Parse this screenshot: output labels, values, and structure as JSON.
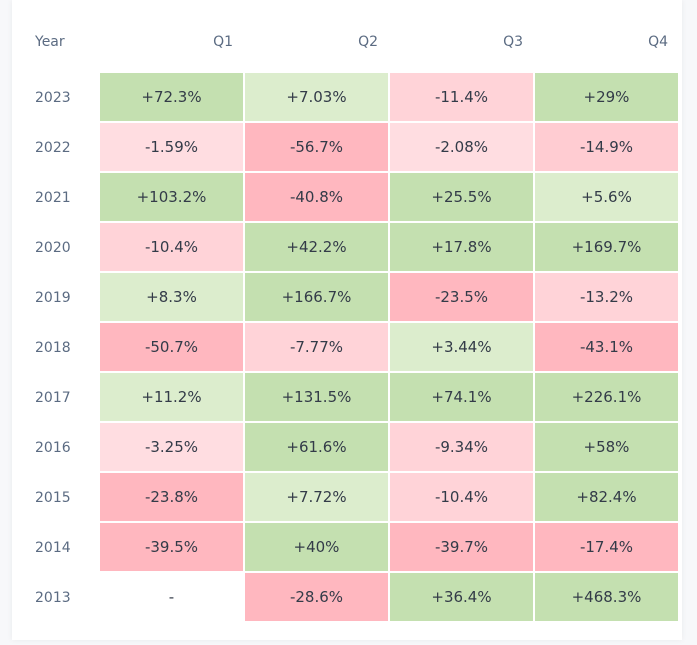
{
  "table": {
    "header": [
      "Year",
      "Q1",
      "Q2",
      "Q3",
      "Q4"
    ],
    "rows": [
      {
        "year": "2023",
        "cells": [
          {
            "text": "+72.3%",
            "color": "#c4e0b0"
          },
          {
            "text": "+7.03%",
            "color": "#dcedcd"
          },
          {
            "text": "-11.4%",
            "color": "#ffd3d8"
          },
          {
            "text": "+29%",
            "color": "#c4e0b0"
          }
        ]
      },
      {
        "year": "2022",
        "cells": [
          {
            "text": "-1.59%",
            "color": "#ffdde1"
          },
          {
            "text": "-56.7%",
            "color": "#ffb7bf"
          },
          {
            "text": "-2.08%",
            "color": "#ffdde1"
          },
          {
            "text": "-14.9%",
            "color": "#ffccd2"
          }
        ]
      },
      {
        "year": "2021",
        "cells": [
          {
            "text": "+103.2%",
            "color": "#c4e0b0"
          },
          {
            "text": "-40.8%",
            "color": "#ffb7bf"
          },
          {
            "text": "+25.5%",
            "color": "#c4e0b0"
          },
          {
            "text": "+5.6%",
            "color": "#dcedcd"
          }
        ]
      },
      {
        "year": "2020",
        "cells": [
          {
            "text": "-10.4%",
            "color": "#ffd3d8"
          },
          {
            "text": "+42.2%",
            "color": "#c4e0b0"
          },
          {
            "text": "+17.8%",
            "color": "#c4e0b0"
          },
          {
            "text": "+169.7%",
            "color": "#c4e0b0"
          }
        ]
      },
      {
        "year": "2019",
        "cells": [
          {
            "text": "+8.3%",
            "color": "#dcedcd"
          },
          {
            "text": "+166.7%",
            "color": "#c4e0b0"
          },
          {
            "text": "-23.5%",
            "color": "#ffb7bf"
          },
          {
            "text": "-13.2%",
            "color": "#ffd3d8"
          }
        ]
      },
      {
        "year": "2018",
        "cells": [
          {
            "text": "-50.7%",
            "color": "#ffb7bf"
          },
          {
            "text": "-7.77%",
            "color": "#ffd3d8"
          },
          {
            "text": "+3.44%",
            "color": "#dcedcd"
          },
          {
            "text": "-43.1%",
            "color": "#ffb7bf"
          }
        ]
      },
      {
        "year": "2017",
        "cells": [
          {
            "text": "+11.2%",
            "color": "#dcedcd"
          },
          {
            "text": "+131.5%",
            "color": "#c4e0b0"
          },
          {
            "text": "+74.1%",
            "color": "#c4e0b0"
          },
          {
            "text": "+226.1%",
            "color": "#c4e0b0"
          }
        ]
      },
      {
        "year": "2016",
        "cells": [
          {
            "text": "-3.25%",
            "color": "#ffdde1"
          },
          {
            "text": "+61.6%",
            "color": "#c4e0b0"
          },
          {
            "text": "-9.34%",
            "color": "#ffd3d8"
          },
          {
            "text": "+58%",
            "color": "#c4e0b0"
          }
        ]
      },
      {
        "year": "2015",
        "cells": [
          {
            "text": "-23.8%",
            "color": "#ffb7bf"
          },
          {
            "text": "+7.72%",
            "color": "#dcedcd"
          },
          {
            "text": "-10.4%",
            "color": "#ffd3d8"
          },
          {
            "text": "+82.4%",
            "color": "#c4e0b0"
          }
        ]
      },
      {
        "year": "2014",
        "cells": [
          {
            "text": "-39.5%",
            "color": "#ffb7bf"
          },
          {
            "text": "+40%",
            "color": "#c4e0b0"
          },
          {
            "text": "-39.7%",
            "color": "#ffb7bf"
          },
          {
            "text": "-17.4%",
            "color": "#ffb7bf"
          }
        ]
      },
      {
        "year": "2013",
        "cells": [
          {
            "text": "-",
            "color": "#ffffff"
          },
          {
            "text": "-28.6%",
            "color": "#ffb7bf"
          },
          {
            "text": "+36.4%",
            "color": "#c4e0b0"
          },
          {
            "text": "+468.3%",
            "color": "#c4e0b0"
          }
        ]
      }
    ]
  }
}
